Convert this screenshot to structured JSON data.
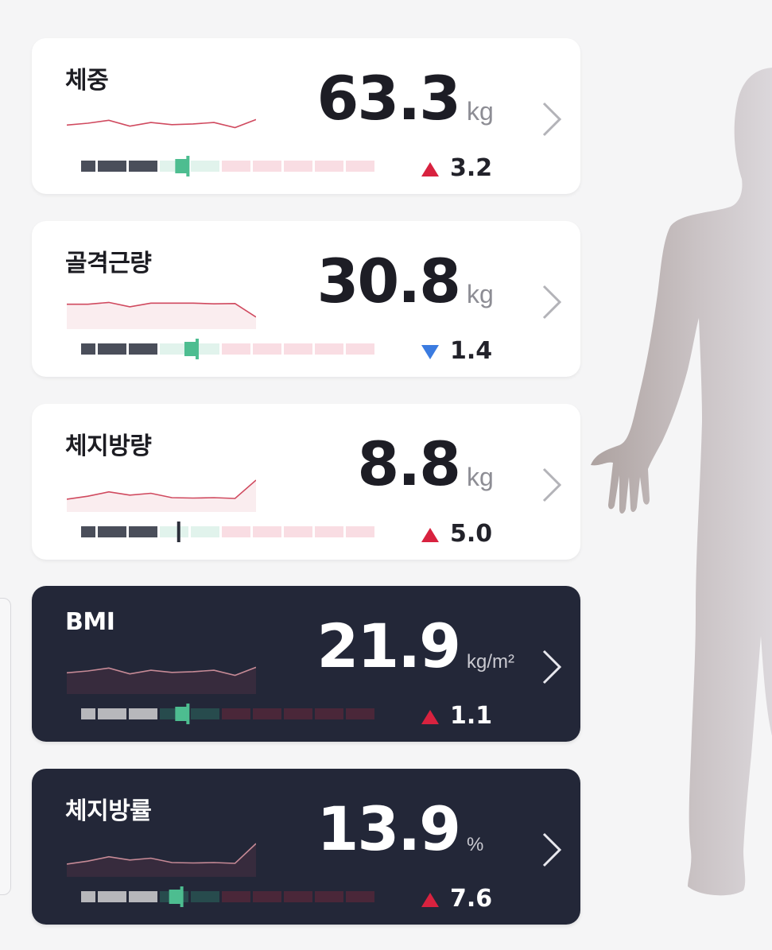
{
  "colors": {
    "page_bg": "#f5f5f6",
    "card_light_bg": "#ffffff",
    "card_dark_bg": "#232738",
    "accent_green": "#4dbd90",
    "increase_red": "#d8223f",
    "decrease_blue": "#3b7be0",
    "sparkline_red": "#d04a5f",
    "body_silhouette": "#b9aeac"
  },
  "side_panel_icon": "collapsed-panel",
  "body_figure_icon": "human-body-silhouette-icon",
  "metrics": [
    {
      "id": "weight",
      "label": "체중",
      "value": "63.3",
      "unit": "kg",
      "change": "3.2",
      "direction": "up",
      "theme": "light",
      "trend": [
        0.45,
        0.5,
        0.58,
        0.42,
        0.52,
        0.46,
        0.48,
        0.52,
        0.38,
        0.6
      ],
      "trend_fill": false,
      "gauge_level": 0.28
    },
    {
      "id": "skeletal-muscle",
      "label": "골격근량",
      "value": "30.8",
      "unit": "kg",
      "change": "1.4",
      "direction": "down",
      "theme": "light",
      "trend": [
        0.55,
        0.55,
        0.6,
        0.48,
        0.58,
        0.58,
        0.58,
        0.56,
        0.57,
        0.2
      ],
      "trend_fill": true,
      "gauge_level": 0.31
    },
    {
      "id": "body-fat-mass",
      "label": "체지방량",
      "value": "8.8",
      "unit": "kg",
      "change": "5.0",
      "direction": "up",
      "theme": "light",
      "trend": [
        0.22,
        0.3,
        0.42,
        0.33,
        0.38,
        0.26,
        0.25,
        0.26,
        0.24,
        0.74
      ],
      "trend_fill": true,
      "gauge_level": 0.25
    },
    {
      "id": "bmi",
      "label": "BMI",
      "value": "21.9",
      "unit": "kg/m²",
      "change": "1.1",
      "direction": "up",
      "theme": "dark",
      "trend": [
        0.45,
        0.5,
        0.58,
        0.42,
        0.52,
        0.46,
        0.48,
        0.52,
        0.38,
        0.6
      ],
      "trend_fill": true,
      "gauge_level": 0.28
    },
    {
      "id": "body-fat-pct",
      "label": "체지방률",
      "value": "13.9",
      "unit": "%",
      "change": "7.6",
      "direction": "up",
      "theme": "dark",
      "trend": [
        0.22,
        0.3,
        0.42,
        0.33,
        0.38,
        0.26,
        0.25,
        0.26,
        0.24,
        0.78
      ],
      "trend_fill": true,
      "gauge_level": 0.26
    }
  ]
}
